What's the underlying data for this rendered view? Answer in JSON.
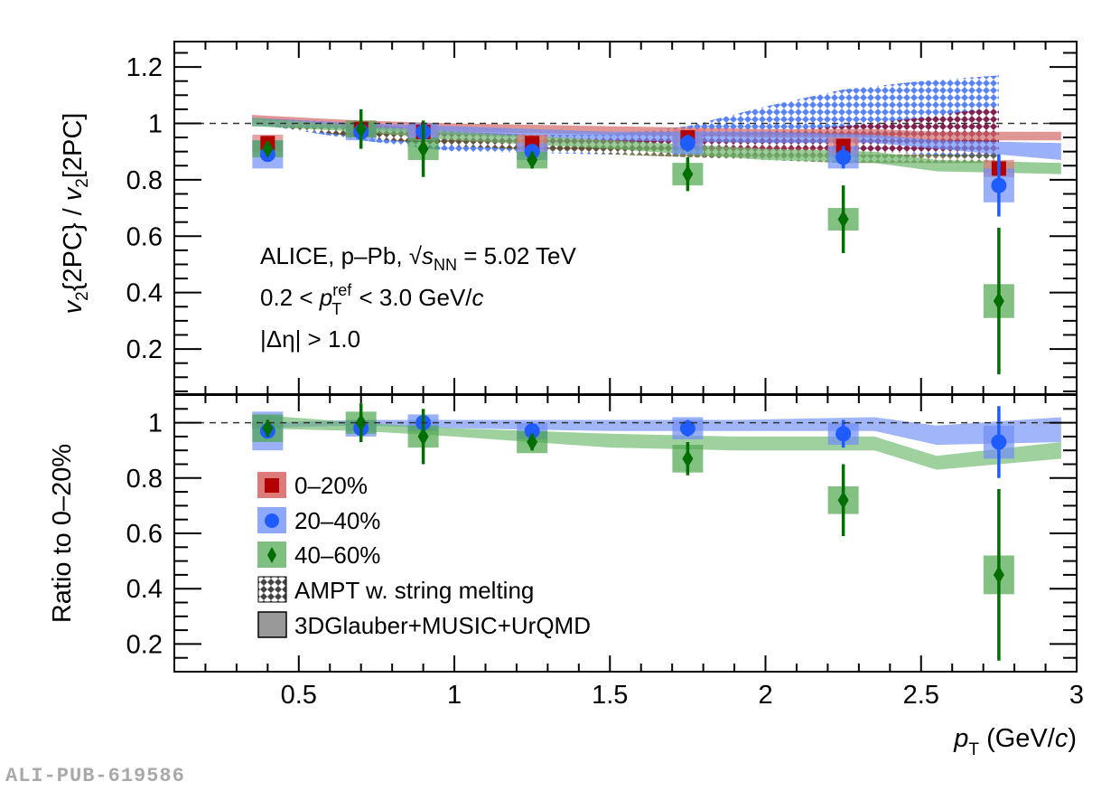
{
  "watermark": "ALI-PUB-619586",
  "annotation": {
    "line1_prefix": "ALICE, p–Pb, ",
    "line1_sqrt_s": "s",
    "line1_sub": "NN",
    "line1_suffix": " = 5.02 TeV",
    "line2_prefix": "0.2 < ",
    "line2_p": "p",
    "line2_sup": "ref",
    "line2_sub": "T",
    "line2_suffix": " < 3.0 GeV/",
    "line2_c": "c",
    "line3": "|Δη| > 1.0"
  },
  "legend": {
    "items": [
      {
        "label": "0–20%",
        "marker": "square",
        "color": "#b30000",
        "band": "#dd7b7b"
      },
      {
        "label": "20–40%",
        "marker": "circle",
        "color": "#1f5cff",
        "band": "#8fa8ff"
      },
      {
        "label": "40–60%",
        "marker": "diamond",
        "color": "#006e00",
        "band": "#7fbf7f"
      },
      {
        "label": "AMPT w. string melting",
        "marker": "hatch"
      },
      {
        "label": "3DGlauber+MUSIC+UrQMD",
        "marker": "filled-box"
      }
    ]
  },
  "chart_data": [
    {
      "type": "scatter",
      "panel": "top",
      "ylabel": "v2{2PC} / v2[2PC]",
      "xlabel": "pT (GeV/c)",
      "xlim": [
        0.1,
        3.0
      ],
      "ylim": [
        0.04,
        1.29
      ],
      "yticks": [
        0.2,
        0.4,
        0.6,
        0.8,
        1,
        1.2
      ],
      "ytick_labels": [
        "0.2",
        "0.4",
        "0.6",
        "0.8",
        "1",
        "1.2"
      ],
      "reference_line": 1.0,
      "x": [
        0.4,
        0.7,
        0.9,
        1.25,
        1.75,
        2.25,
        2.75
      ],
      "series": [
        {
          "name": "0–20%",
          "values": [
            0.93,
            0.98,
            0.97,
            0.93,
            0.95,
            0.92,
            0.84
          ],
          "stat_err": [
            0.01,
            0.01,
            0.01,
            0.01,
            0.01,
            0.01,
            0.02
          ],
          "sys_err": [
            0.03,
            0.03,
            0.03,
            0.03,
            0.03,
            0.03,
            0.03
          ]
        },
        {
          "name": "20–40%",
          "values": [
            0.89,
            0.97,
            0.97,
            0.9,
            0.93,
            0.88,
            0.78
          ],
          "stat_err": [
            0.01,
            0.02,
            0.02,
            0.02,
            0.03,
            0.04,
            0.11
          ],
          "sys_err": [
            0.05,
            0.03,
            0.03,
            0.03,
            0.04,
            0.04,
            0.06
          ]
        },
        {
          "name": "40–60%",
          "values": [
            0.91,
            0.98,
            0.91,
            0.87,
            0.82,
            0.66,
            0.37
          ],
          "stat_err": [
            0.02,
            0.07,
            0.1,
            0.03,
            0.06,
            0.12,
            0.26
          ],
          "sys_err": [
            0.03,
            0.03,
            0.04,
            0.03,
            0.04,
            0.04,
            0.06
          ]
        }
      ],
      "models": {
        "hydro_x": [
          0.35,
          0.7,
          1.0,
          1.5,
          2.0,
          2.35,
          2.55,
          2.95
        ],
        "hydro": [
          {
            "name": "0–20% hydro",
            "low": [
              1.0,
              0.99,
              0.97,
              0.96,
              0.95,
              0.95,
              0.94,
              0.94
            ],
            "high": [
              1.03,
              1.01,
              1.0,
              0.99,
              0.98,
              0.98,
              0.97,
              0.97
            ]
          },
          {
            "name": "20–40% hydro",
            "low": [
              0.99,
              0.98,
              0.96,
              0.94,
              0.93,
              0.93,
              0.91,
              0.87
            ],
            "high": [
              1.02,
              1.0,
              0.99,
              0.97,
              0.97,
              0.96,
              0.94,
              0.93
            ]
          },
          {
            "name": "40–60% hydro",
            "low": [
              0.99,
              0.97,
              0.94,
              0.91,
              0.87,
              0.86,
              0.83,
              0.82
            ],
            "high": [
              1.02,
              0.99,
              0.97,
              0.94,
              0.91,
              0.9,
              0.87,
              0.86
            ]
          }
        ],
        "ampt_x": [
          0.35,
          0.7,
          1.0,
          1.5,
          1.75,
          2.0,
          2.25,
          2.5,
          2.75
        ],
        "ampt": [
          {
            "name": "0–20% AMPT",
            "low": [
              1.0,
              0.95,
              0.92,
              0.9,
              0.89,
              0.89,
              0.89,
              0.9,
              0.89
            ],
            "high": [
              1.02,
              1.0,
              0.97,
              0.95,
              0.96,
              0.97,
              0.99,
              1.02,
              1.06
            ]
          },
          {
            "name": "20–40% AMPT",
            "low": [
              1.0,
              0.94,
              0.9,
              0.89,
              0.91,
              0.92,
              0.91,
              0.89,
              0.87
            ],
            "high": [
              1.02,
              0.98,
              0.96,
              0.96,
              0.99,
              1.06,
              1.12,
              1.15,
              1.17
            ]
          },
          {
            "name": "40–60% AMPT",
            "low": [
              1.0,
              0.95,
              0.92,
              0.89,
              0.88,
              0.87,
              0.86,
              0.86,
              0.86
            ],
            "high": [
              1.02,
              0.98,
              0.94,
              0.92,
              0.91,
              0.9,
              0.89,
              0.89,
              0.89
            ]
          }
        ]
      }
    },
    {
      "type": "scatter",
      "panel": "bottom",
      "ylabel": "Ratio to 0–20%",
      "xlabel": "pT (GeV/c)",
      "xlim": [
        0.1,
        3.0
      ],
      "ylim": [
        0.1,
        1.1
      ],
      "yticks": [
        0.2,
        0.4,
        0.6,
        0.8,
        1
      ],
      "ytick_labels": [
        "0.2",
        "0.4",
        "0.6",
        "0.8",
        "1"
      ],
      "xticks": [
        0.5,
        1,
        1.5,
        2,
        2.5,
        3
      ],
      "xtick_labels": [
        "0.5",
        "1",
        "1.5",
        "2",
        "2.5",
        "3"
      ],
      "reference_line": 1.0,
      "x": [
        0.4,
        0.7,
        0.9,
        1.25,
        1.75,
        2.25,
        2.75
      ],
      "series": [
        {
          "name": "20–40%",
          "values": [
            0.97,
            0.98,
            1.0,
            0.97,
            0.98,
            0.96,
            0.93
          ],
          "stat_err": [
            0.02,
            0.02,
            0.02,
            0.02,
            0.03,
            0.05,
            0.13
          ],
          "sys_err": [
            0.07,
            0.03,
            0.03,
            0.03,
            0.04,
            0.04,
            0.06
          ]
        },
        {
          "name": "40–60%",
          "values": [
            0.98,
            1.0,
            0.95,
            0.93,
            0.87,
            0.72,
            0.45
          ],
          "stat_err": [
            0.03,
            0.07,
            0.1,
            0.03,
            0.06,
            0.13,
            0.31
          ],
          "sys_err": [
            0.05,
            0.04,
            0.04,
            0.04,
            0.05,
            0.05,
            0.07
          ]
        }
      ],
      "models": {
        "hydro_x": [
          0.35,
          0.7,
          1.0,
          1.5,
          1.9,
          2.35,
          2.55,
          2.95
        ],
        "hydro": [
          {
            "name": "20–40% hydro",
            "low": [
              0.98,
              0.99,
              0.98,
              0.97,
              0.97,
              0.97,
              0.92,
              0.93
            ],
            "high": [
              1.0,
              1.01,
              1.01,
              1.01,
              1.01,
              1.02,
              0.99,
              1.02
            ]
          },
          {
            "name": "40–60% hydro",
            "low": [
              0.98,
              0.97,
              0.95,
              0.91,
              0.9,
              0.9,
              0.83,
              0.87
            ],
            "high": [
              1.03,
              1.0,
              0.98,
              0.96,
              0.95,
              0.95,
              0.88,
              0.93
            ]
          }
        ]
      }
    }
  ]
}
